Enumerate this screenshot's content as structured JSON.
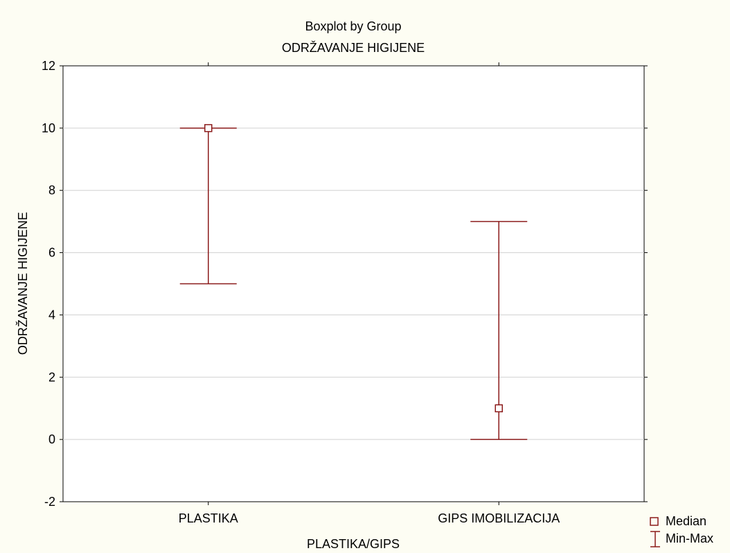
{
  "chart_data": {
    "type": "boxplot",
    "title": "Boxplot by Group",
    "subtitle": "ODRŽAVANJE HIGIJENE",
    "xlabel": "PLASTIKA/GIPS",
    "ylabel": "ODRŽAVANJE HIGIJENE",
    "ylim": [
      -2,
      12
    ],
    "yticks": [
      -2,
      0,
      2,
      4,
      6,
      8,
      10,
      12
    ],
    "grid": true,
    "legend_position": "bottom-right",
    "legend": {
      "median": "Median",
      "minmax": "Min-Max"
    },
    "color": "#8b1a1a",
    "groups": [
      {
        "category": "PLASTIKA",
        "median": 10,
        "min": 5,
        "max": 10
      },
      {
        "category": "GIPS IMOBILIZACIJA",
        "median": 1,
        "min": 0,
        "max": 7
      }
    ]
  }
}
